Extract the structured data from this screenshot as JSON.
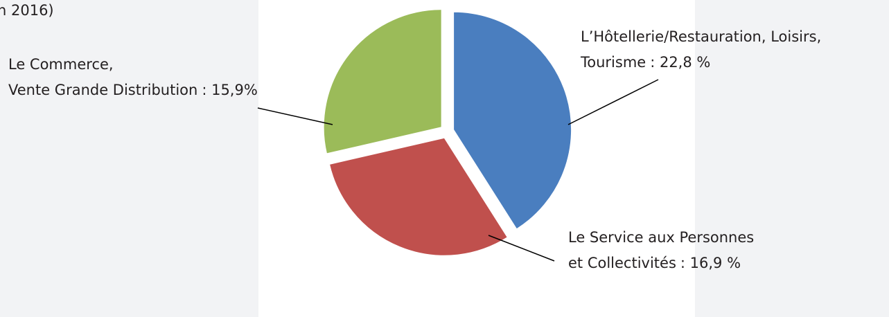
{
  "chart_data": {
    "type": "pie",
    "title": "n 2016)",
    "categories": [
      "L’Hôtellerie/Restauration, Loisirs,\nTourisme",
      "Le Service aux Personnes\net Collectivités",
      "Le Commerce,\nVente Grande Distribution"
    ],
    "values": [
      22.8,
      16.9,
      15.9
    ],
    "value_labels": [
      ": 22,8 %",
      ": 16,9 %",
      ": 15,9%"
    ],
    "colors": [
      "#4a7ebf",
      "#c0504d",
      "#9bbb59"
    ]
  }
}
